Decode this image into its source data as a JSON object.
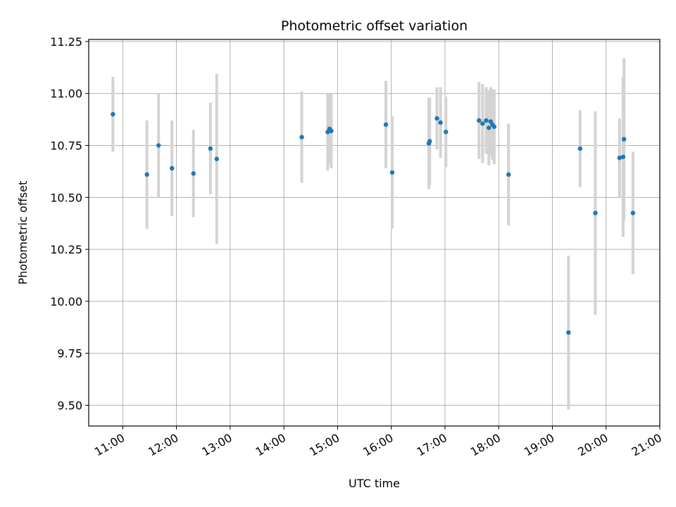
{
  "chart_data": {
    "type": "scatter",
    "title": "Photometric offset variation",
    "xlabel": "UTC time",
    "ylabel": "Photometric offset",
    "xlim": [
      "10:22",
      "21:00"
    ],
    "ylim": [
      9.4,
      11.26
    ],
    "grid": true,
    "x_ticks": [
      "11:00",
      "12:00",
      "13:00",
      "14:00",
      "15:00",
      "16:00",
      "17:00",
      "18:00",
      "19:00",
      "20:00",
      "21:00"
    ],
    "y_ticks": [
      "9.50",
      "9.75",
      "10.00",
      "10.25",
      "10.50",
      "10.75",
      "11.00",
      "11.25"
    ],
    "colors": {
      "points": "#1f77b4",
      "errorbars": "#d3d3d3",
      "grid": "#b0b0b0"
    },
    "points": [
      {
        "x": "10:49",
        "y": 10.9,
        "err": 0.18
      },
      {
        "x": "11:27",
        "y": 10.61,
        "err": 0.26
      },
      {
        "x": "11:40",
        "y": 10.75,
        "err": 0.25
      },
      {
        "x": "11:55",
        "y": 10.64,
        "err": 0.23
      },
      {
        "x": "12:19",
        "y": 10.615,
        "err": 0.21
      },
      {
        "x": "12:38",
        "y": 10.735,
        "err": 0.22
      },
      {
        "x": "12:45",
        "y": 10.685,
        "err": 0.41
      },
      {
        "x": "14:20",
        "y": 10.79,
        "err": 0.22
      },
      {
        "x": "14:49",
        "y": 10.815,
        "err": 0.185
      },
      {
        "x": "14:51",
        "y": 10.83,
        "err": 0.17
      },
      {
        "x": "14:53",
        "y": 10.82,
        "err": 0.18
      },
      {
        "x": "15:54",
        "y": 10.85,
        "err": 0.21
      },
      {
        "x": "16:01",
        "y": 10.62,
        "err": 0.27
      },
      {
        "x": "16:42",
        "y": 10.76,
        "err": 0.22
      },
      {
        "x": "16:43",
        "y": 10.77,
        "err": 0.21
      },
      {
        "x": "16:51",
        "y": 10.88,
        "err": 0.15
      },
      {
        "x": "16:55",
        "y": 10.86,
        "err": 0.17
      },
      {
        "x": "17:01",
        "y": 10.815,
        "err": 0.17
      },
      {
        "x": "17:38",
        "y": 10.87,
        "err": 0.185
      },
      {
        "x": "17:42",
        "y": 10.855,
        "err": 0.19
      },
      {
        "x": "17:46",
        "y": 10.87,
        "err": 0.16
      },
      {
        "x": "17:49",
        "y": 10.835,
        "err": 0.18
      },
      {
        "x": "17:51",
        "y": 10.865,
        "err": 0.165
      },
      {
        "x": "17:53",
        "y": 10.85,
        "err": 0.17
      },
      {
        "x": "17:55",
        "y": 10.84,
        "err": 0.18
      },
      {
        "x": "18:11",
        "y": 10.61,
        "err": 0.245
      },
      {
        "x": "19:18",
        "y": 9.85,
        "err": 0.37
      },
      {
        "x": "19:31",
        "y": 10.735,
        "err": 0.185
      },
      {
        "x": "19:48",
        "y": 10.425,
        "err": 0.49
      },
      {
        "x": "20:15",
        "y": 10.69,
        "err": 0.19
      },
      {
        "x": "20:19",
        "y": 10.695,
        "err": 0.385
      },
      {
        "x": "20:20",
        "y": 10.78,
        "err": 0.39
      },
      {
        "x": "20:30",
        "y": 10.425,
        "err": 0.295
      }
    ]
  }
}
